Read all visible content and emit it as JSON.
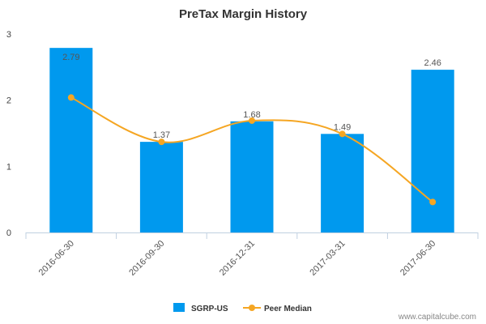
{
  "chart_data": {
    "type": "bar",
    "title": "PreTax Margin History",
    "categories": [
      "2016-06-30",
      "2016-09-30",
      "2016-12-31",
      "2017-03-31",
      "2017-06-30"
    ],
    "series": [
      {
        "name": "SGRP-US",
        "type": "bar",
        "values": [
          2.79,
          1.37,
          1.68,
          1.49,
          2.46
        ],
        "color": "#0099ee"
      },
      {
        "name": "Peer Median",
        "type": "line",
        "values": [
          2.04,
          1.37,
          1.69,
          1.49,
          0.46
        ],
        "color": "#f5a623"
      }
    ],
    "data_labels": [
      "2.79",
      "1.37",
      "1.68",
      "1.49",
      "2.46"
    ],
    "ylim": [
      0,
      3
    ],
    "yticks": [
      "0",
      "1",
      "2",
      "3"
    ],
    "grid": false,
    "legend_position": "bottom-center"
  },
  "credit": "www.capitalcube.com"
}
